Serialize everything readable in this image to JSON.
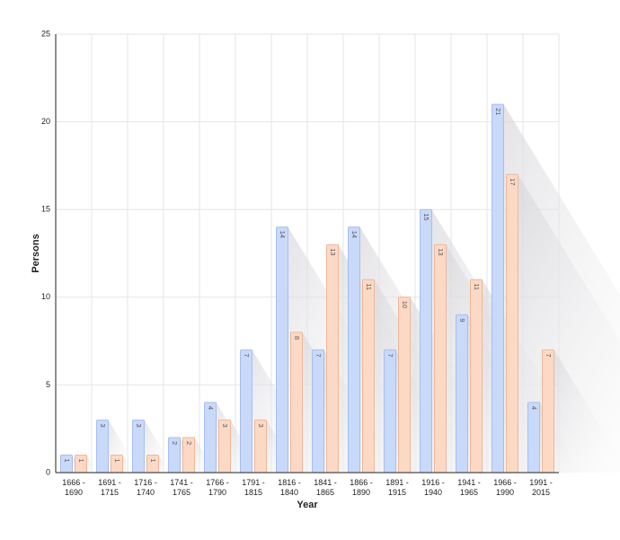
{
  "chart_data": {
    "type": "bar",
    "xlabel": "Year",
    "ylabel": "Persons",
    "categories": [
      "1666 - 1690",
      "1691 - 1715",
      "1716 - 1740",
      "1741 - 1765",
      "1766 - 1790",
      "1791 - 1815",
      "1816 - 1840",
      "1841 - 1865",
      "1866 - 1890",
      "1891 - 1915",
      "1916 - 1940",
      "1941 - 1965",
      "1966 - 1990",
      "1991 - 2015"
    ],
    "series": [
      {
        "color": "#c9d9f9",
        "values": [
          1,
          3,
          3,
          2,
          4,
          7,
          14,
          7,
          14,
          7,
          15,
          9,
          21,
          4
        ]
      },
      {
        "color": "#fcd9c5",
        "values": [
          1,
          1,
          1,
          2,
          3,
          3,
          8,
          13,
          11,
          10,
          13,
          11,
          17,
          7
        ]
      }
    ],
    "ylim": [
      0,
      25
    ],
    "yticks": [
      0,
      5,
      10,
      15,
      20,
      25
    ],
    "grid": true
  }
}
